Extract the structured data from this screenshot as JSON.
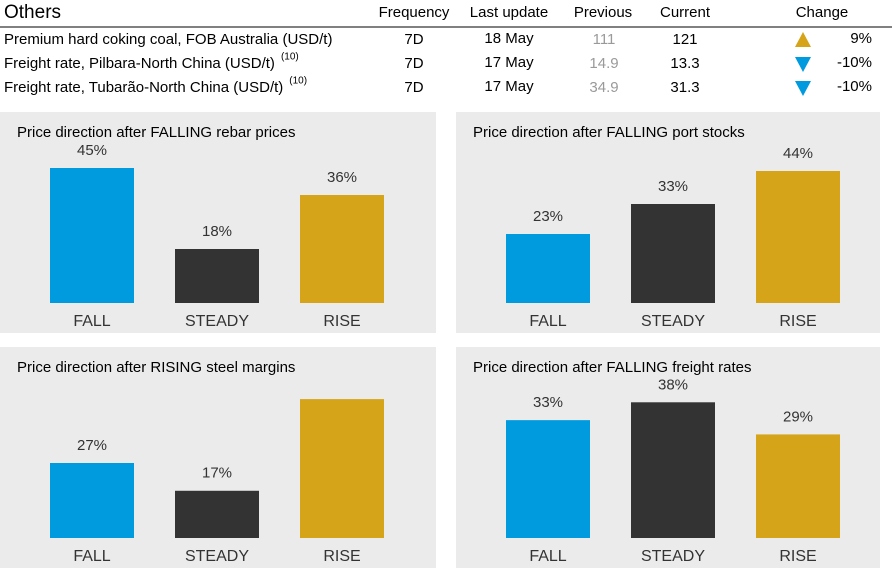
{
  "table": {
    "title": "Others",
    "columns": [
      "Frequency",
      "Last update",
      "Previous",
      "Current",
      "Change"
    ],
    "rows": [
      {
        "name": "Premium hard coking coal, FOB Australia (USD/t)",
        "frequency": "7D",
        "last_update": "18 May",
        "previous": "111",
        "current": "121",
        "direction": "up",
        "change": "9%"
      },
      {
        "name": "Freight rate, Pilbara-North China (USD/t)",
        "note": "(10)",
        "frequency": "7D",
        "last_update": "17 May",
        "previous": "14.9",
        "current": "13.3",
        "direction": "down",
        "change": "-10%"
      },
      {
        "name": "Freight rate, Tubarão-North China (USD/t)",
        "note": "(10)",
        "frequency": "7D",
        "last_update": "17 May",
        "previous": "34.9",
        "current": "31.3",
        "direction": "down",
        "change": "-10%"
      }
    ]
  },
  "chart_data": [
    {
      "type": "bar",
      "title": "Price direction after FALLING rebar prices",
      "categories": [
        "FALL",
        "STEADY",
        "RISE"
      ],
      "values": [
        45,
        18,
        36
      ],
      "value_labels": [
        "45%",
        "18%",
        "36%"
      ],
      "colors": [
        "#009ade",
        "#333333",
        "#d5a419"
      ],
      "ylim": [
        0,
        50
      ]
    },
    {
      "type": "bar",
      "title": "Price direction after FALLING port stocks",
      "categories": [
        "FALL",
        "STEADY",
        "RISE"
      ],
      "values": [
        23,
        33,
        44
      ],
      "value_labels": [
        "23%",
        "33%",
        "44%"
      ],
      "colors": [
        "#009ade",
        "#333333",
        "#d5a419"
      ],
      "ylim": [
        0,
        50
      ]
    },
    {
      "type": "bar",
      "title": "Price direction after RISING steel margins",
      "categories": [
        "FALL",
        "STEADY",
        "RISE"
      ],
      "values": [
        27,
        17,
        50
      ],
      "value_labels": [
        "27%",
        "17%",
        null
      ],
      "colors": [
        "#009ade",
        "#333333",
        "#d5a419"
      ],
      "ylim": [
        0,
        54
      ]
    },
    {
      "type": "bar",
      "title": "Price direction after FALLING freight rates",
      "categories": [
        "FALL",
        "STEADY",
        "RISE"
      ],
      "values": [
        33,
        38,
        29
      ],
      "value_labels": [
        "33%",
        "38%",
        "29%"
      ],
      "colors": [
        "#009ade",
        "#333333",
        "#d5a419"
      ],
      "ylim": [
        0,
        42
      ]
    }
  ]
}
